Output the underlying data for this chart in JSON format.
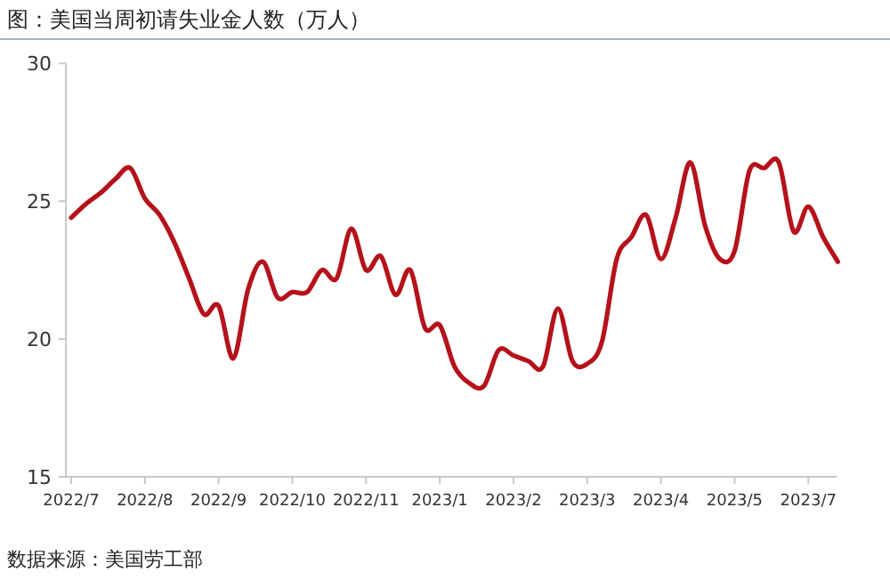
{
  "chart_data": {
    "type": "line",
    "title": "图：美国当周初请失业金人数（万人）",
    "categories": [
      "2022/7",
      null,
      null,
      null,
      null,
      "2022/8",
      null,
      null,
      null,
      null,
      "2022/9",
      null,
      null,
      null,
      null,
      "2022/10",
      null,
      null,
      null,
      null,
      "2022/11",
      null,
      null,
      null,
      null,
      "2023/1",
      null,
      null,
      null,
      null,
      "2023/2",
      null,
      null,
      null,
      null,
      "2023/3",
      null,
      null,
      null,
      null,
      "2023/4",
      null,
      null,
      null,
      null,
      "2023/5",
      null,
      null,
      null,
      null,
      "2023/7",
      null,
      null
    ],
    "series": [
      {
        "color": "#b5121b",
        "values": [
          24.4,
          24.9,
          25.3,
          25.8,
          26.2,
          25.1,
          24.5,
          23.5,
          22.2,
          20.9,
          21.2,
          19.3,
          21.8,
          22.8,
          21.5,
          21.7,
          21.7,
          22.5,
          22.2,
          24.0,
          22.5,
          23.0,
          21.6,
          22.5,
          20.4,
          20.5,
          19.0,
          18.4,
          18.3,
          19.6,
          19.4,
          19.2,
          19.0,
          21.1,
          19.2,
          19.1,
          19.9,
          22.9,
          23.7,
          24.5,
          22.9,
          24.4,
          26.4,
          24.1,
          22.9,
          23.2,
          26.1,
          26.2,
          26.4,
          23.9,
          24.8,
          23.7,
          22.8
        ]
      }
    ],
    "ylim": [
      15,
      30
    ],
    "yticks": [
      15,
      20,
      25,
      30
    ],
    "grid": false,
    "line_style": "solid",
    "marker": "none",
    "annotations": [
      "数据来源：美国劳工部"
    ]
  }
}
